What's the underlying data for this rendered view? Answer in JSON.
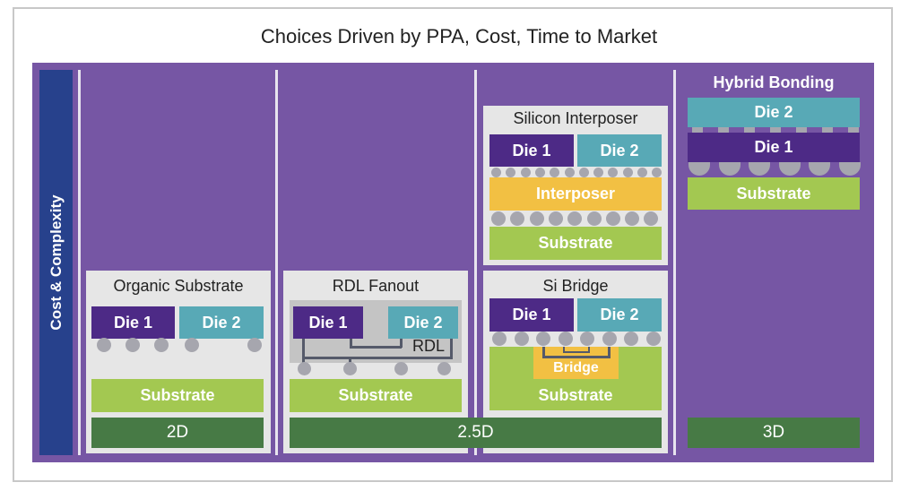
{
  "title": "Choices Driven by PPA, Cost, Time to Market",
  "axis_label": "Cost & Complexity",
  "levels": {
    "l2d": "2D",
    "l25d": "2.5D",
    "l3d": "3D"
  },
  "organic": {
    "title": "Organic Substrate",
    "die1": "Die 1",
    "die2": "Die 2",
    "substrate": "Substrate"
  },
  "rdl": {
    "title": "RDL Fanout",
    "die1": "Die 1",
    "die2": "Die 2",
    "rdl": "RDL",
    "substrate": "Substrate"
  },
  "bridge": {
    "title": "Si Bridge",
    "die1": "Die 1",
    "die2": "Die 2",
    "bridge": "Bridge",
    "substrate": "Substrate"
  },
  "interposer": {
    "title": "Silicon Interposer",
    "die1": "Die 1",
    "die2": "Die 2",
    "interposer": "Interposer",
    "substrate": "Substrate"
  },
  "hybrid": {
    "title": "Hybrid Bonding",
    "die2": "Die 2",
    "die1": "Die 1",
    "substrate": "Substrate"
  },
  "colors": {
    "panel": "#7656a4",
    "axis": "#27418c",
    "die1": "#4d2a86",
    "die2": "#58a9b6",
    "substrate": "#a3c851",
    "interposer": "#f2c043",
    "level": "#477a45"
  }
}
